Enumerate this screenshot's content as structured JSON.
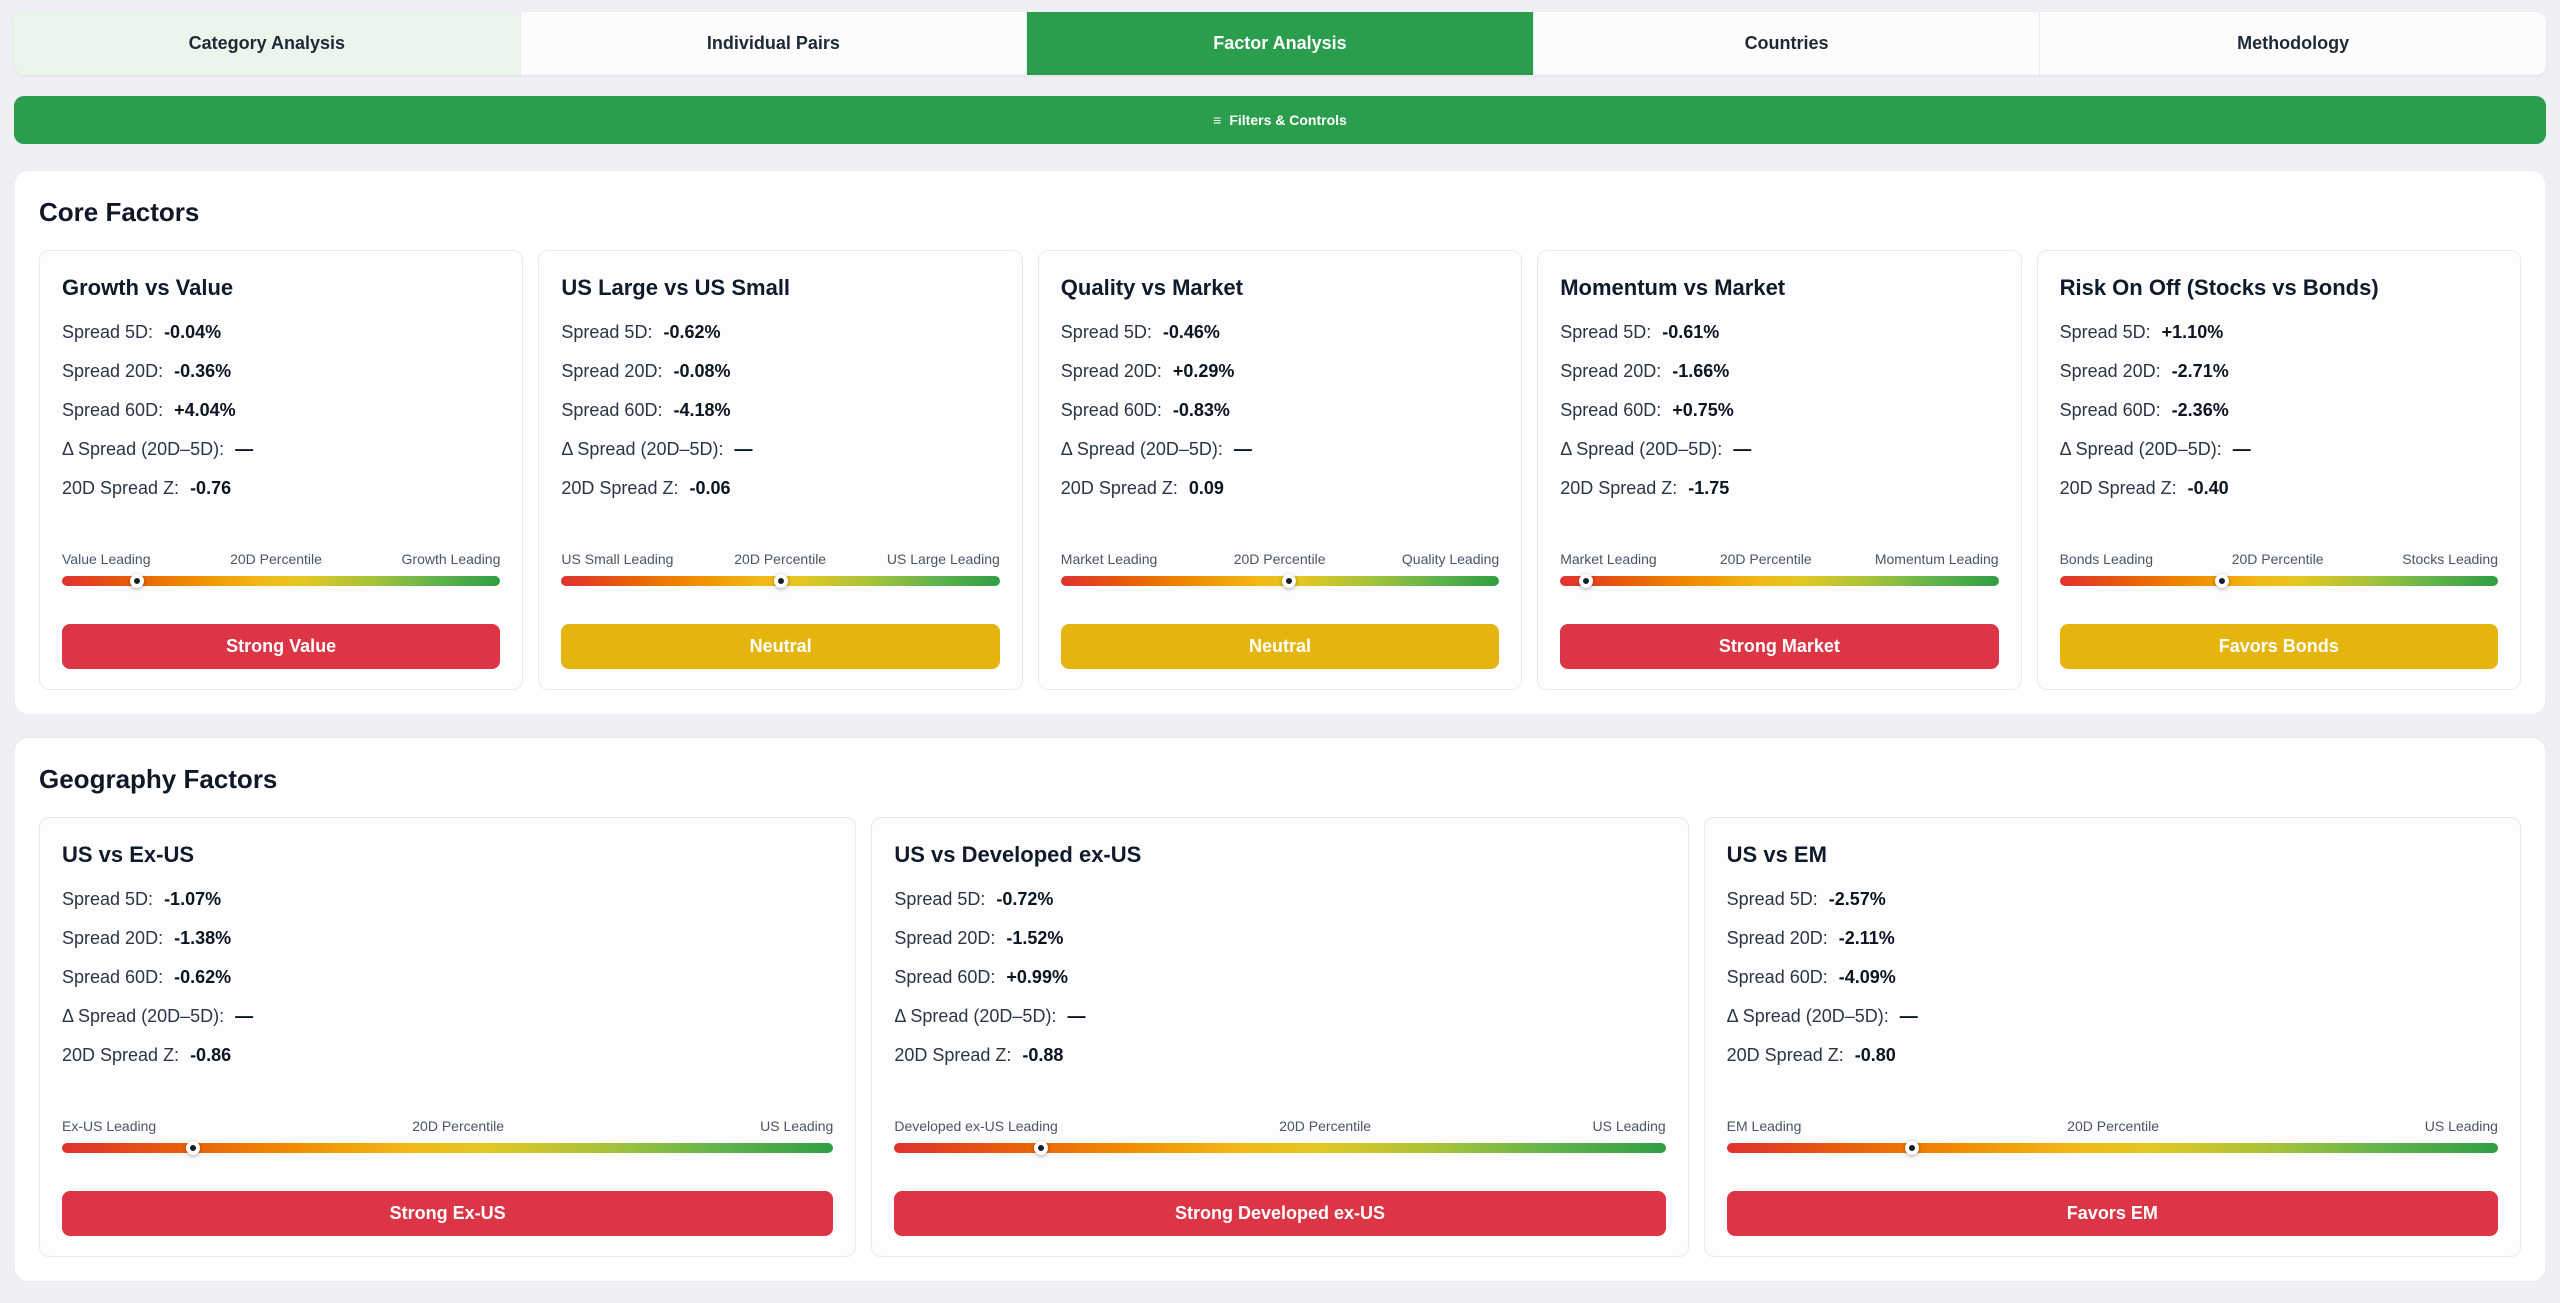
{
  "tabs": [
    {
      "label": "Category Analysis",
      "active": false
    },
    {
      "label": "Individual Pairs",
      "active": false
    },
    {
      "label": "Factor Analysis",
      "active": true
    },
    {
      "label": "Countries",
      "active": false
    },
    {
      "label": "Methodology",
      "active": false
    }
  ],
  "filters_bar": {
    "icon": "≡",
    "label": "Filters & Controls"
  },
  "colors": {
    "accent_green": "#2a9e4c",
    "badge": {
      "red": "#dc3545",
      "yellow": "#e5b50e"
    },
    "gradient_ends": [
      "#e03131",
      "#2f9e44"
    ]
  },
  "sections": [
    {
      "title": "Core Factors",
      "cards": [
        {
          "title": "Growth vs Value",
          "metrics": [
            {
              "label": "Spread 5D:",
              "value": "-0.04%"
            },
            {
              "label": "Spread 20D:",
              "value": "-0.36%"
            },
            {
              "label": "Spread 60D:",
              "value": "+4.04%"
            },
            {
              "label": "Δ Spread (20D–5D):",
              "value": "—"
            },
            {
              "label": "20D Spread Z:",
              "value": "-0.76"
            }
          ],
          "slider": {
            "left": "Value Leading",
            "center": "20D Percentile",
            "right": "Growth Leading",
            "position_pct": 17
          },
          "badge": {
            "label": "Strong Value",
            "color": "red"
          }
        },
        {
          "title": "US Large vs US Small",
          "metrics": [
            {
              "label": "Spread 5D:",
              "value": "-0.62%"
            },
            {
              "label": "Spread 20D:",
              "value": "-0.08%"
            },
            {
              "label": "Spread 60D:",
              "value": "-4.18%"
            },
            {
              "label": "Δ Spread (20D–5D):",
              "value": "—"
            },
            {
              "label": "20D Spread Z:",
              "value": "-0.06"
            }
          ],
          "slider": {
            "left": "US Small Leading",
            "center": "20D Percentile",
            "right": "US Large Leading",
            "position_pct": 50
          },
          "badge": {
            "label": "Neutral",
            "color": "yellow"
          }
        },
        {
          "title": "Quality vs Market",
          "metrics": [
            {
              "label": "Spread 5D:",
              "value": "-0.46%"
            },
            {
              "label": "Spread 20D:",
              "value": "+0.29%"
            },
            {
              "label": "Spread 60D:",
              "value": "-0.83%"
            },
            {
              "label": "Δ Spread (20D–5D):",
              "value": "—"
            },
            {
              "label": "20D Spread Z:",
              "value": "0.09"
            }
          ],
          "slider": {
            "left": "Market Leading",
            "center": "20D Percentile",
            "right": "Quality Leading",
            "position_pct": 52
          },
          "badge": {
            "label": "Neutral",
            "color": "yellow"
          }
        },
        {
          "title": "Momentum vs Market",
          "metrics": [
            {
              "label": "Spread 5D:",
              "value": "-0.61%"
            },
            {
              "label": "Spread 20D:",
              "value": "-1.66%"
            },
            {
              "label": "Spread 60D:",
              "value": "+0.75%"
            },
            {
              "label": "Δ Spread (20D–5D):",
              "value": "—"
            },
            {
              "label": "20D Spread Z:",
              "value": "-1.75"
            }
          ],
          "slider": {
            "left": "Market Leading",
            "center": "20D Percentile",
            "right": "Momentum Leading",
            "position_pct": 6
          },
          "badge": {
            "label": "Strong Market",
            "color": "red"
          }
        },
        {
          "title": "Risk On Off (Stocks vs Bonds)",
          "metrics": [
            {
              "label": "Spread 5D:",
              "value": "+1.10%"
            },
            {
              "label": "Spread 20D:",
              "value": "-2.71%"
            },
            {
              "label": "Spread 60D:",
              "value": "-2.36%"
            },
            {
              "label": "Δ Spread (20D–5D):",
              "value": "—"
            },
            {
              "label": "20D Spread Z:",
              "value": "-0.40"
            }
          ],
          "slider": {
            "left": "Bonds Leading",
            "center": "20D Percentile",
            "right": "Stocks Leading",
            "position_pct": 37
          },
          "badge": {
            "label": "Favors Bonds",
            "color": "yellow"
          }
        }
      ]
    },
    {
      "title": "Geography Factors",
      "cards": [
        {
          "title": "US vs Ex-US",
          "metrics": [
            {
              "label": "Spread 5D:",
              "value": "-1.07%"
            },
            {
              "label": "Spread 20D:",
              "value": "-1.38%"
            },
            {
              "label": "Spread 60D:",
              "value": "-0.62%"
            },
            {
              "label": "Δ Spread (20D–5D):",
              "value": "—"
            },
            {
              "label": "20D Spread Z:",
              "value": "-0.86"
            }
          ],
          "slider": {
            "left": "Ex-US Leading",
            "center": "20D Percentile",
            "right": "US Leading",
            "position_pct": 17
          },
          "badge": {
            "label": "Strong Ex-US",
            "color": "red"
          }
        },
        {
          "title": "US vs Developed ex-US",
          "metrics": [
            {
              "label": "Spread 5D:",
              "value": "-0.72%"
            },
            {
              "label": "Spread 20D:",
              "value": "-1.52%"
            },
            {
              "label": "Spread 60D:",
              "value": "+0.99%"
            },
            {
              "label": "Δ Spread (20D–5D):",
              "value": "—"
            },
            {
              "label": "20D Spread Z:",
              "value": "-0.88"
            }
          ],
          "slider": {
            "left": "Developed ex-US Leading",
            "center": "20D Percentile",
            "right": "US Leading",
            "position_pct": 19
          },
          "badge": {
            "label": "Strong Developed ex-US",
            "color": "red"
          }
        },
        {
          "title": "US vs EM",
          "metrics": [
            {
              "label": "Spread 5D:",
              "value": "-2.57%"
            },
            {
              "label": "Spread 20D:",
              "value": "-2.11%"
            },
            {
              "label": "Spread 60D:",
              "value": "-4.09%"
            },
            {
              "label": "Δ Spread (20D–5D):",
              "value": "—"
            },
            {
              "label": "20D Spread Z:",
              "value": "-0.80"
            }
          ],
          "slider": {
            "left": "EM Leading",
            "center": "20D Percentile",
            "right": "US Leading",
            "position_pct": 24
          },
          "badge": {
            "label": "Favors EM",
            "color": "red"
          }
        }
      ]
    }
  ]
}
